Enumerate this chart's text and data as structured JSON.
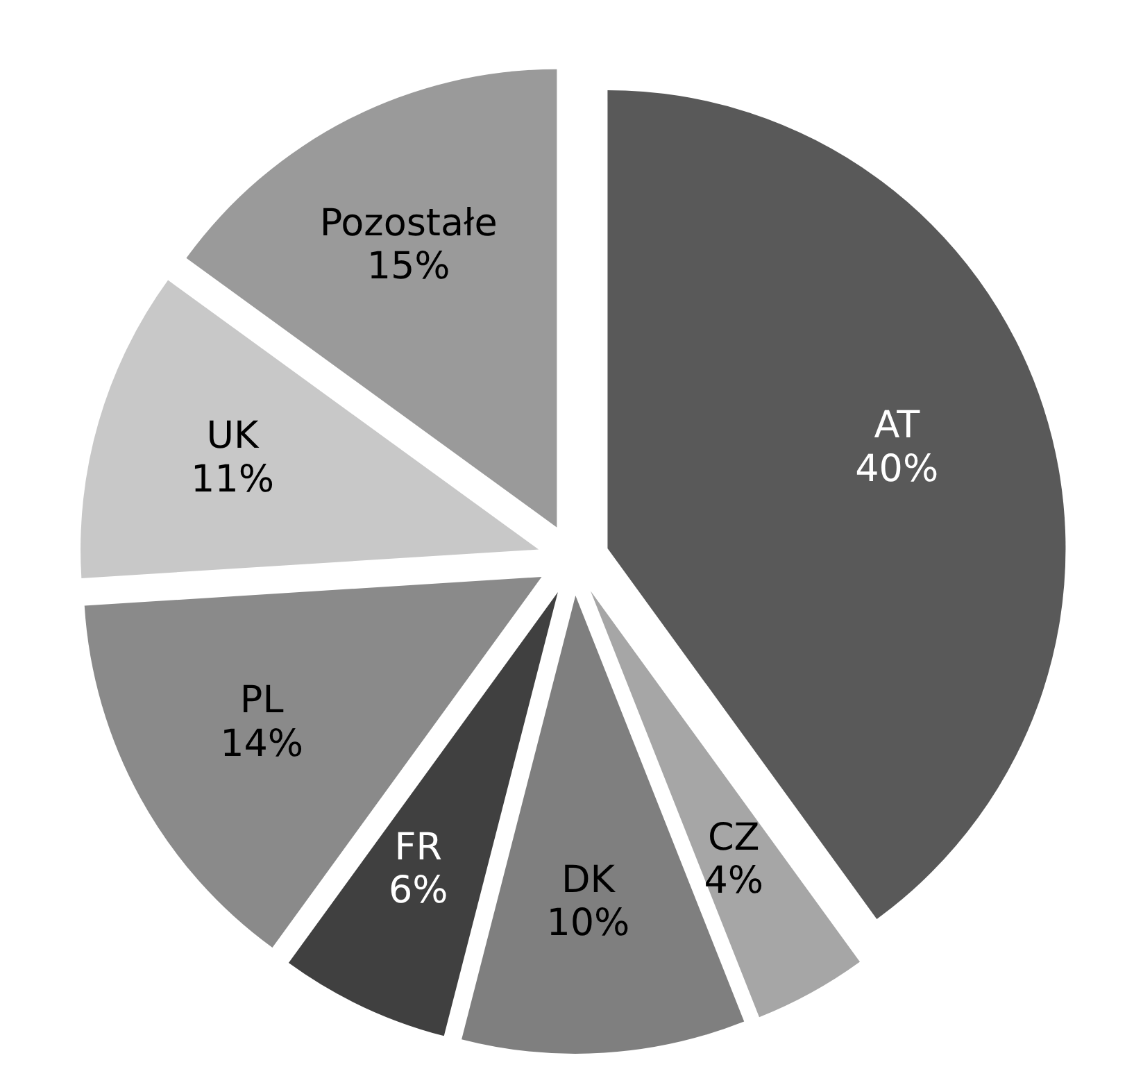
{
  "chart_data": {
    "type": "pie",
    "categories": [
      "AT",
      "CZ",
      "DK",
      "FR",
      "PL",
      "UK",
      "Pozostałe"
    ],
    "values": [
      40,
      4,
      10,
      6,
      14,
      11,
      15
    ],
    "value_labels": [
      "40%",
      "4%",
      "10%",
      "6%",
      "14%",
      "11%",
      "15%"
    ],
    "colors": [
      "#595959",
      "#a6a6a6",
      "#7f7f7f",
      "#404040",
      "#8a8a8a",
      "#c8c8c8",
      "#9a9a9a"
    ],
    "legend": false
  }
}
